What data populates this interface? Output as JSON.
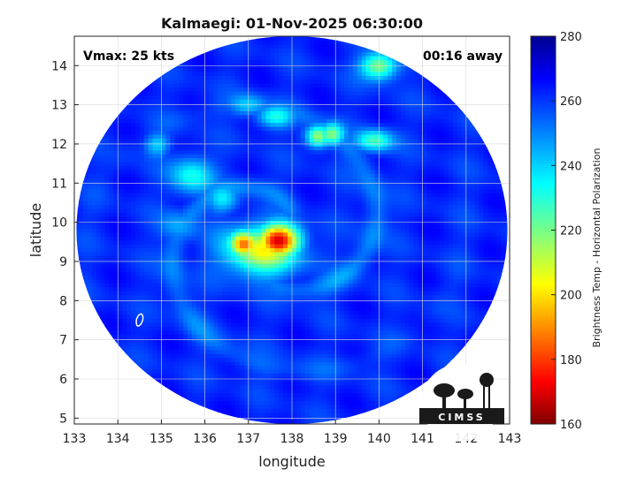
{
  "chart_data": {
    "type": "heatmap",
    "title": "Kalmaegi: 01-Nov-2025 06:30:00",
    "xlabel": "longitude",
    "ylabel": "latitude",
    "xlim": [
      133,
      143
    ],
    "ylim": [
      4.85,
      14.75
    ],
    "xticks": [
      133,
      134,
      135,
      136,
      137,
      138,
      139,
      140,
      141,
      142,
      143
    ],
    "yticks": [
      5,
      6,
      7,
      8,
      9,
      10,
      11,
      12,
      13,
      14
    ],
    "grid": true,
    "annotations": {
      "vmax": "Vmax: 25 kts",
      "away": "00:16 away"
    },
    "colorbar": {
      "label": "Brightness Temp - Horizontal Polarization",
      "range": [
        160,
        280
      ],
      "ticks": [
        160,
        180,
        200,
        220,
        240,
        260,
        280
      ],
      "colormap": "jet"
    },
    "storm_center": {
      "lon": 134.5,
      "lat": 7.5
    },
    "swath_center": {
      "lon": 138.0,
      "lat": 9.8
    },
    "swath_radius_deg": {
      "lon": 4.95,
      "lat": 4.95
    },
    "background_temp": 262,
    "features": [
      {
        "lon": 137.7,
        "lat": 9.55,
        "temp": 170,
        "sigma_lon": 0.35,
        "sigma_lat": 0.3
      },
      {
        "lon": 136.9,
        "lat": 9.45,
        "temp": 185,
        "sigma_lon": 0.25,
        "sigma_lat": 0.25
      },
      {
        "lon": 137.3,
        "lat": 9.3,
        "temp": 205,
        "sigma_lon": 0.6,
        "sigma_lat": 0.45
      },
      {
        "lon": 135.7,
        "lat": 11.2,
        "temp": 232,
        "sigma_lon": 0.35,
        "sigma_lat": 0.35
      },
      {
        "lon": 136.4,
        "lat": 10.6,
        "temp": 238,
        "sigma_lon": 0.25,
        "sigma_lat": 0.25
      },
      {
        "lon": 137.6,
        "lat": 12.7,
        "temp": 232,
        "sigma_lon": 0.3,
        "sigma_lat": 0.2
      },
      {
        "lon": 138.6,
        "lat": 12.2,
        "temp": 212,
        "sigma_lon": 0.2,
        "sigma_lat": 0.2
      },
      {
        "lon": 138.9,
        "lat": 12.25,
        "temp": 218,
        "sigma_lon": 0.2,
        "sigma_lat": 0.2
      },
      {
        "lon": 139.9,
        "lat": 12.1,
        "temp": 225,
        "sigma_lon": 0.3,
        "sigma_lat": 0.2
      },
      {
        "lon": 140.0,
        "lat": 14.0,
        "temp": 215,
        "sigma_lon": 0.3,
        "sigma_lat": 0.25
      },
      {
        "lon": 137.0,
        "lat": 13.0,
        "temp": 240,
        "sigma_lon": 0.3,
        "sigma_lat": 0.2
      },
      {
        "lon": 134.9,
        "lat": 12.0,
        "temp": 240,
        "sigma_lon": 0.2,
        "sigma_lat": 0.2
      },
      {
        "lon": 135.4,
        "lat": 9.9,
        "temp": 245,
        "sigma_lon": 0.3,
        "sigma_lat": 0.3
      }
    ],
    "legend": "none"
  },
  "logo": {
    "text": "CIMSS"
  }
}
